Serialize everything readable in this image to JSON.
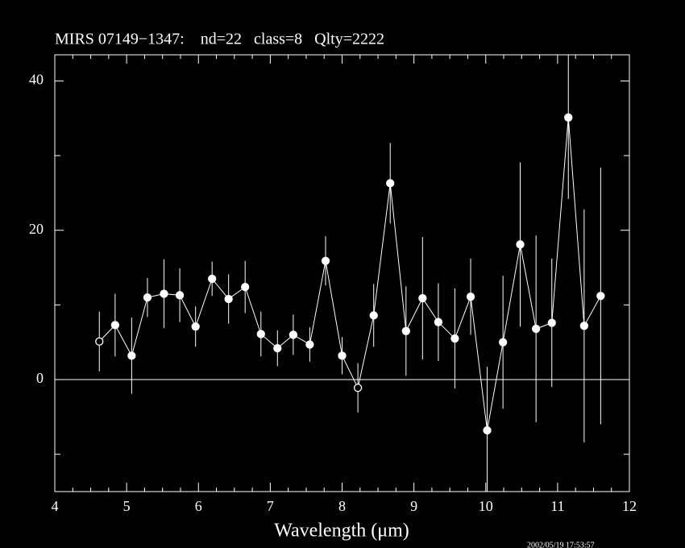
{
  "chart_data": {
    "type": "scatter",
    "title": "MIRS 07149−1347:    nd=22   class=8   Qlty=2222",
    "x_label": "Wavelength (μm)",
    "timestamp": "2002/05/19 17:53:57",
    "color": "#ffffff",
    "background": "#000000",
    "connect_points": true,
    "zero_line": true,
    "x": [
      4.62,
      4.84,
      5.07,
      5.29,
      5.52,
      5.74,
      5.96,
      6.19,
      6.42,
      6.65,
      6.87,
      7.1,
      7.32,
      7.55,
      7.77,
      8.0,
      8.22,
      8.44,
      8.67,
      8.89,
      9.12,
      9.34,
      9.57,
      9.79,
      10.02,
      10.24,
      10.48,
      10.7,
      10.92,
      11.15,
      11.37,
      11.6
    ],
    "y": [
      5.1,
      7.3,
      3.2,
      11.0,
      11.5,
      11.3,
      7.1,
      13.5,
      10.8,
      12.4,
      6.1,
      4.2,
      6.0,
      4.7,
      15.9,
      3.2,
      -1.1,
      8.6,
      26.3,
      6.5,
      10.9,
      7.7,
      5.5,
      11.1,
      -6.8,
      5.0,
      18.1,
      6.8,
      7.6,
      35.1,
      7.2,
      11.2
    ],
    "err": [
      4.0,
      4.2,
      5.1,
      2.6,
      4.6,
      3.6,
      2.7,
      2.3,
      3.3,
      3.5,
      3.0,
      2.4,
      2.7,
      2.3,
      3.3,
      2.5,
      3.3,
      4.2,
      5.4,
      6.0,
      8.2,
      5.2,
      6.7,
      5.1,
      8.5,
      8.9,
      11.0,
      12.5,
      8.6,
      10.9,
      15.6,
      17.2
    ],
    "markers": [
      "open",
      "filled",
      "filled",
      "filled",
      "filled",
      "filled",
      "filled",
      "filled",
      "filled",
      "filled",
      "filled",
      "filled",
      "filled",
      "filled",
      "filled",
      "filled",
      "open",
      "filled",
      "filled",
      "filled",
      "filled",
      "filled",
      "filled",
      "filled",
      "filled",
      "filled",
      "filled",
      "filled",
      "filled",
      "filled",
      "filled",
      "filled"
    ],
    "xlim": [
      4,
      12
    ],
    "ylim": [
      -15,
      43.5
    ],
    "xticks": [
      4,
      5,
      6,
      7,
      8,
      9,
      10,
      11,
      12
    ],
    "xminor": [
      4.25,
      4.5,
      4.75,
      5.25,
      5.5,
      5.75,
      6.25,
      6.5,
      6.75,
      7.25,
      7.5,
      7.75,
      8.25,
      8.5,
      8.75,
      9.25,
      9.5,
      9.75,
      10.25,
      10.5,
      10.75,
      11.25,
      11.5,
      11.75
    ],
    "yticks": [
      0,
      20,
      40
    ],
    "yminor": [
      -10,
      10,
      30
    ]
  }
}
